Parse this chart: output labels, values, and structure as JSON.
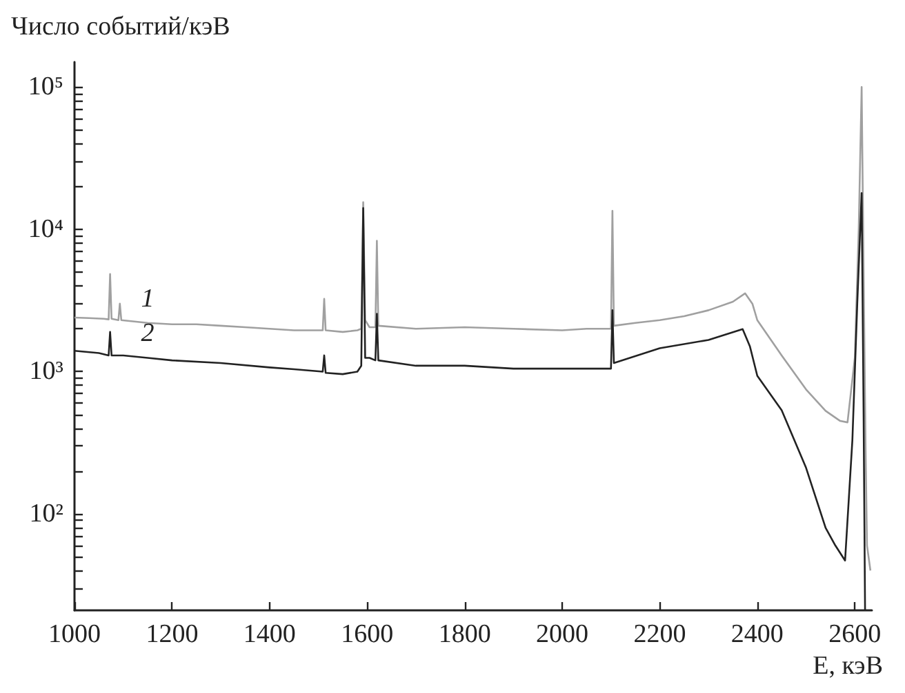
{
  "chart_data": {
    "type": "line",
    "ylabel": "Число событий/кэВ",
    "xlabel": "E, кэВ",
    "log": "y",
    "grid": false,
    "legend": false,
    "marker": "none",
    "line_style": "solid",
    "xlim": [
      1000,
      2635
    ],
    "xticks": [
      1000,
      1200,
      1400,
      1600,
      1800,
      2000,
      2200,
      2400,
      2600
    ],
    "ylim": [
      21,
      150000
    ],
    "yticks": [
      {
        "value": 30,
        "label": null
      },
      {
        "value": 40,
        "label": null
      },
      {
        "value": 50,
        "label": null
      },
      {
        "value": 60,
        "label": null
      },
      {
        "value": 70,
        "label": null
      },
      {
        "value": 80,
        "label": null
      },
      {
        "value": 90,
        "label": null
      },
      {
        "value": 100,
        "label": "10²"
      },
      {
        "value": 200,
        "label": null
      },
      {
        "value": 300,
        "label": null
      },
      {
        "value": 400,
        "label": null
      },
      {
        "value": 500,
        "label": null
      },
      {
        "value": 600,
        "label": null
      },
      {
        "value": 700,
        "label": null
      },
      {
        "value": 800,
        "label": null
      },
      {
        "value": 900,
        "label": null
      },
      {
        "value": 1000,
        "label": "10³"
      },
      {
        "value": 2000,
        "label": null
      },
      {
        "value": 3000,
        "label": null
      },
      {
        "value": 4000,
        "label": null
      },
      {
        "value": 5000,
        "label": null
      },
      {
        "value": 6000,
        "label": null
      },
      {
        "value": 7000,
        "label": null
      },
      {
        "value": 8000,
        "label": null
      },
      {
        "value": 9000,
        "label": null
      },
      {
        "value": 10000,
        "label": "10⁴"
      },
      {
        "value": 20000,
        "label": null
      },
      {
        "value": 30000,
        "label": null
      },
      {
        "value": 40000,
        "label": null
      },
      {
        "value": 50000,
        "label": null
      },
      {
        "value": 60000,
        "label": null
      },
      {
        "value": 70000,
        "label": null
      },
      {
        "value": 80000,
        "label": null
      },
      {
        "value": 90000,
        "label": null
      },
      {
        "value": 100000,
        "label": "10⁵"
      }
    ],
    "series": [
      {
        "name": "1",
        "color": "#a0a0a0",
        "x": [
          1000,
          1030,
          1060,
          1070,
          1073,
          1076,
          1090,
          1093,
          1096,
          1150,
          1200,
          1250,
          1300,
          1350,
          1400,
          1450,
          1509,
          1512,
          1515,
          1550,
          1580,
          1588,
          1592,
          1596,
          1605,
          1617,
          1620,
          1623,
          1700,
          1800,
          1900,
          2000,
          2050,
          2100,
          2103,
          2106,
          2150,
          2200,
          2250,
          2300,
          2350,
          2375,
          2390,
          2400,
          2450,
          2500,
          2540,
          2570,
          2585,
          2600,
          2608,
          2614,
          2618,
          2622,
          2625,
          2632
        ],
        "values": [
          2400,
          2380,
          2350,
          2330,
          4850,
          2350,
          2300,
          3000,
          2300,
          2200,
          2150,
          2150,
          2100,
          2050,
          2000,
          1950,
          1950,
          3250,
          1950,
          1900,
          1950,
          2000,
          15500,
          2300,
          2050,
          2050,
          8300,
          2100,
          2000,
          2050,
          2000,
          1950,
          2000,
          2000,
          13500,
          2100,
          2200,
          2300,
          2450,
          2700,
          3100,
          3550,
          3000,
          2300,
          1300,
          750,
          530,
          450,
          440,
          1250,
          10000,
          100000,
          5000,
          300,
          60,
          40
        ]
      },
      {
        "name": "2",
        "color": "#222222",
        "x": [
          1000,
          1050,
          1070,
          1073,
          1076,
          1100,
          1150,
          1200,
          1300,
          1400,
          1450,
          1509,
          1512,
          1515,
          1550,
          1580,
          1588,
          1592,
          1596,
          1605,
          1617,
          1620,
          1623,
          1700,
          1800,
          1900,
          2000,
          2100,
          2103,
          2106,
          2200,
          2300,
          2370,
          2385,
          2400,
          2450,
          2500,
          2540,
          2560,
          2580,
          2595,
          2605,
          2614,
          2618,
          2621
        ],
        "values": [
          1400,
          1350,
          1300,
          1900,
          1300,
          1300,
          1250,
          1200,
          1150,
          1070,
          1040,
          1000,
          1300,
          980,
          960,
          1000,
          1100,
          14100,
          1250,
          1250,
          1200,
          2550,
          1200,
          1100,
          1100,
          1050,
          1050,
          1050,
          2700,
          1150,
          1460,
          1670,
          1990,
          1500,
          935,
          535,
          211,
          80,
          60,
          47,
          330,
          3000,
          18000,
          500,
          21
        ]
      }
    ]
  }
}
